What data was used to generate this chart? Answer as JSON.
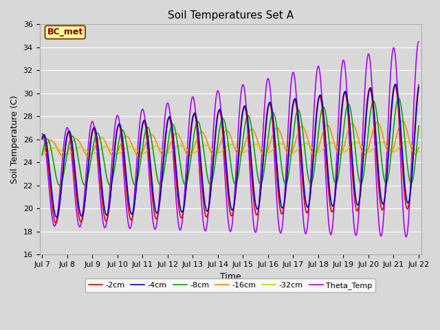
{
  "title": "Soil Temperatures Set A",
  "xlabel": "Time",
  "ylabel": "Soil Temperature (C)",
  "ylim": [
    16,
    36
  ],
  "xtick_labels": [
    "Jul 7",
    "Jul 8",
    "Jul 9",
    "Jul 10",
    "Jul 11",
    "Jul 12",
    "Jul 13",
    "Jul 14",
    "Jul 15",
    "Jul 16",
    "Jul 17",
    "Jul 18",
    "Jul 19",
    "Jul 20",
    "Jul 21",
    "Jul 22"
  ],
  "series": {
    "-2cm": {
      "color": "#dd0000",
      "lw": 1.2
    },
    "-4cm": {
      "color": "#0000cc",
      "lw": 1.2
    },
    "-8cm": {
      "color": "#00aa00",
      "lw": 1.2
    },
    "-16cm": {
      "color": "#ff8800",
      "lw": 1.2
    },
    "-32cm": {
      "color": "#cccc00",
      "lw": 1.2
    },
    "Theta_Temp": {
      "color": "#aa00ff",
      "lw": 1.2
    }
  },
  "annotation_text": "BC_met",
  "bg_color": "#d8d8d8",
  "grid_color": "#ffffff",
  "title_fontsize": 11,
  "axis_fontsize": 9,
  "tick_fontsize": 8
}
